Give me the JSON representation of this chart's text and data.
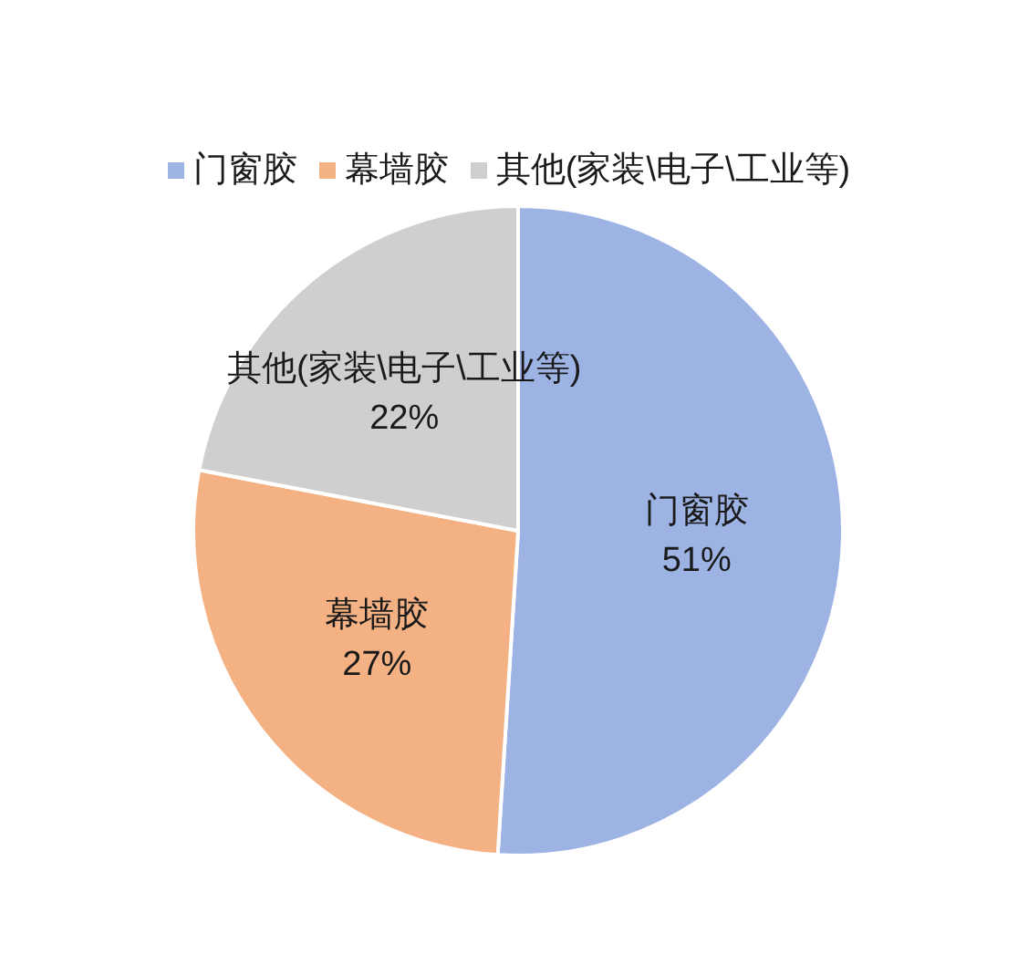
{
  "chart_data": {
    "type": "pie",
    "categories": [
      "门窗胶",
      "幕墙胶",
      "其他(家装\\电子\\工业等)"
    ],
    "values": [
      51,
      27,
      22
    ],
    "colors": [
      "#9db3e4",
      "#f4b183",
      "#cfcfcf"
    ],
    "value_labels": [
      "51%",
      "27%",
      "22%"
    ],
    "legend": "top"
  }
}
